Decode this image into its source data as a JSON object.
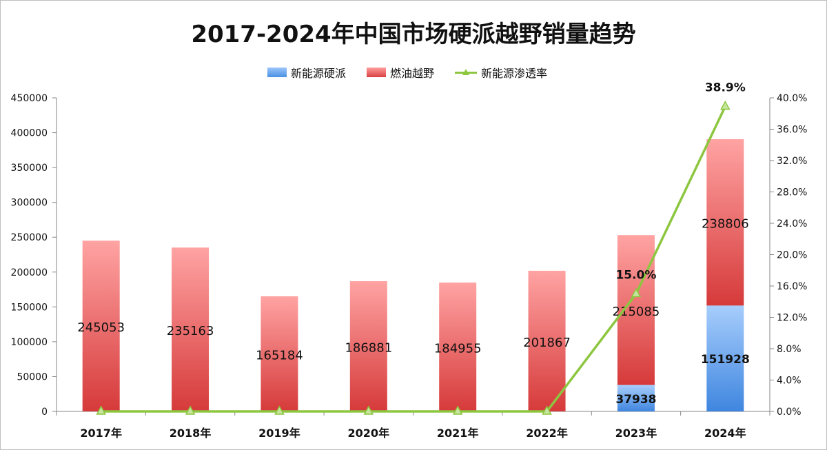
{
  "chart_data": {
    "type": "bar",
    "title": "2017-2024年中国市场硬派越野销量趋势",
    "categories": [
      "2017年",
      "2018年",
      "2019年",
      "2020年",
      "2021年",
      "2022年",
      "2023年",
      "2024年"
    ],
    "series": [
      {
        "name": "新能源硬派",
        "kind": "bar",
        "stack": "total",
        "values": [
          0,
          0,
          0,
          0,
          0,
          0,
          37938,
          151928
        ],
        "color": "#4a90e2"
      },
      {
        "name": "燃油越野",
        "kind": "bar",
        "stack": "total",
        "values": [
          245053,
          235163,
          165184,
          186881,
          184955,
          201867,
          215085,
          238806
        ],
        "color": "#e04848"
      },
      {
        "name": "新能源渗透率",
        "kind": "line",
        "axis": "right",
        "values": [
          0,
          0,
          0,
          0,
          0,
          0,
          15.0,
          38.9
        ],
        "color": "#8dc63f"
      }
    ],
    "bar_labels": {
      "ev": [
        "",
        "",
        "",
        "",
        "",
        "",
        "37938",
        "151928"
      ],
      "ice": [
        "245053",
        "235163",
        "165184",
        "186881",
        "184955",
        "201867",
        "215085",
        "238806"
      ]
    },
    "line_labels": [
      "",
      "",
      "",
      "",
      "",
      "",
      "15.0%",
      "38.9%"
    ],
    "y_left": {
      "min": 0,
      "max": 450000,
      "ticks": [
        "0",
        "50000",
        "100000",
        "150000",
        "200000",
        "250000",
        "300000",
        "350000",
        "400000",
        "450000"
      ]
    },
    "y_right": {
      "min": 0,
      "max": 40,
      "ticks": [
        "0.0%",
        "4.0%",
        "8.0%",
        "12.0%",
        "16.0%",
        "20.0%",
        "24.0%",
        "28.0%",
        "32.0%",
        "36.0%",
        "40.0%"
      ]
    },
    "legend_position": "top",
    "grid": false
  }
}
